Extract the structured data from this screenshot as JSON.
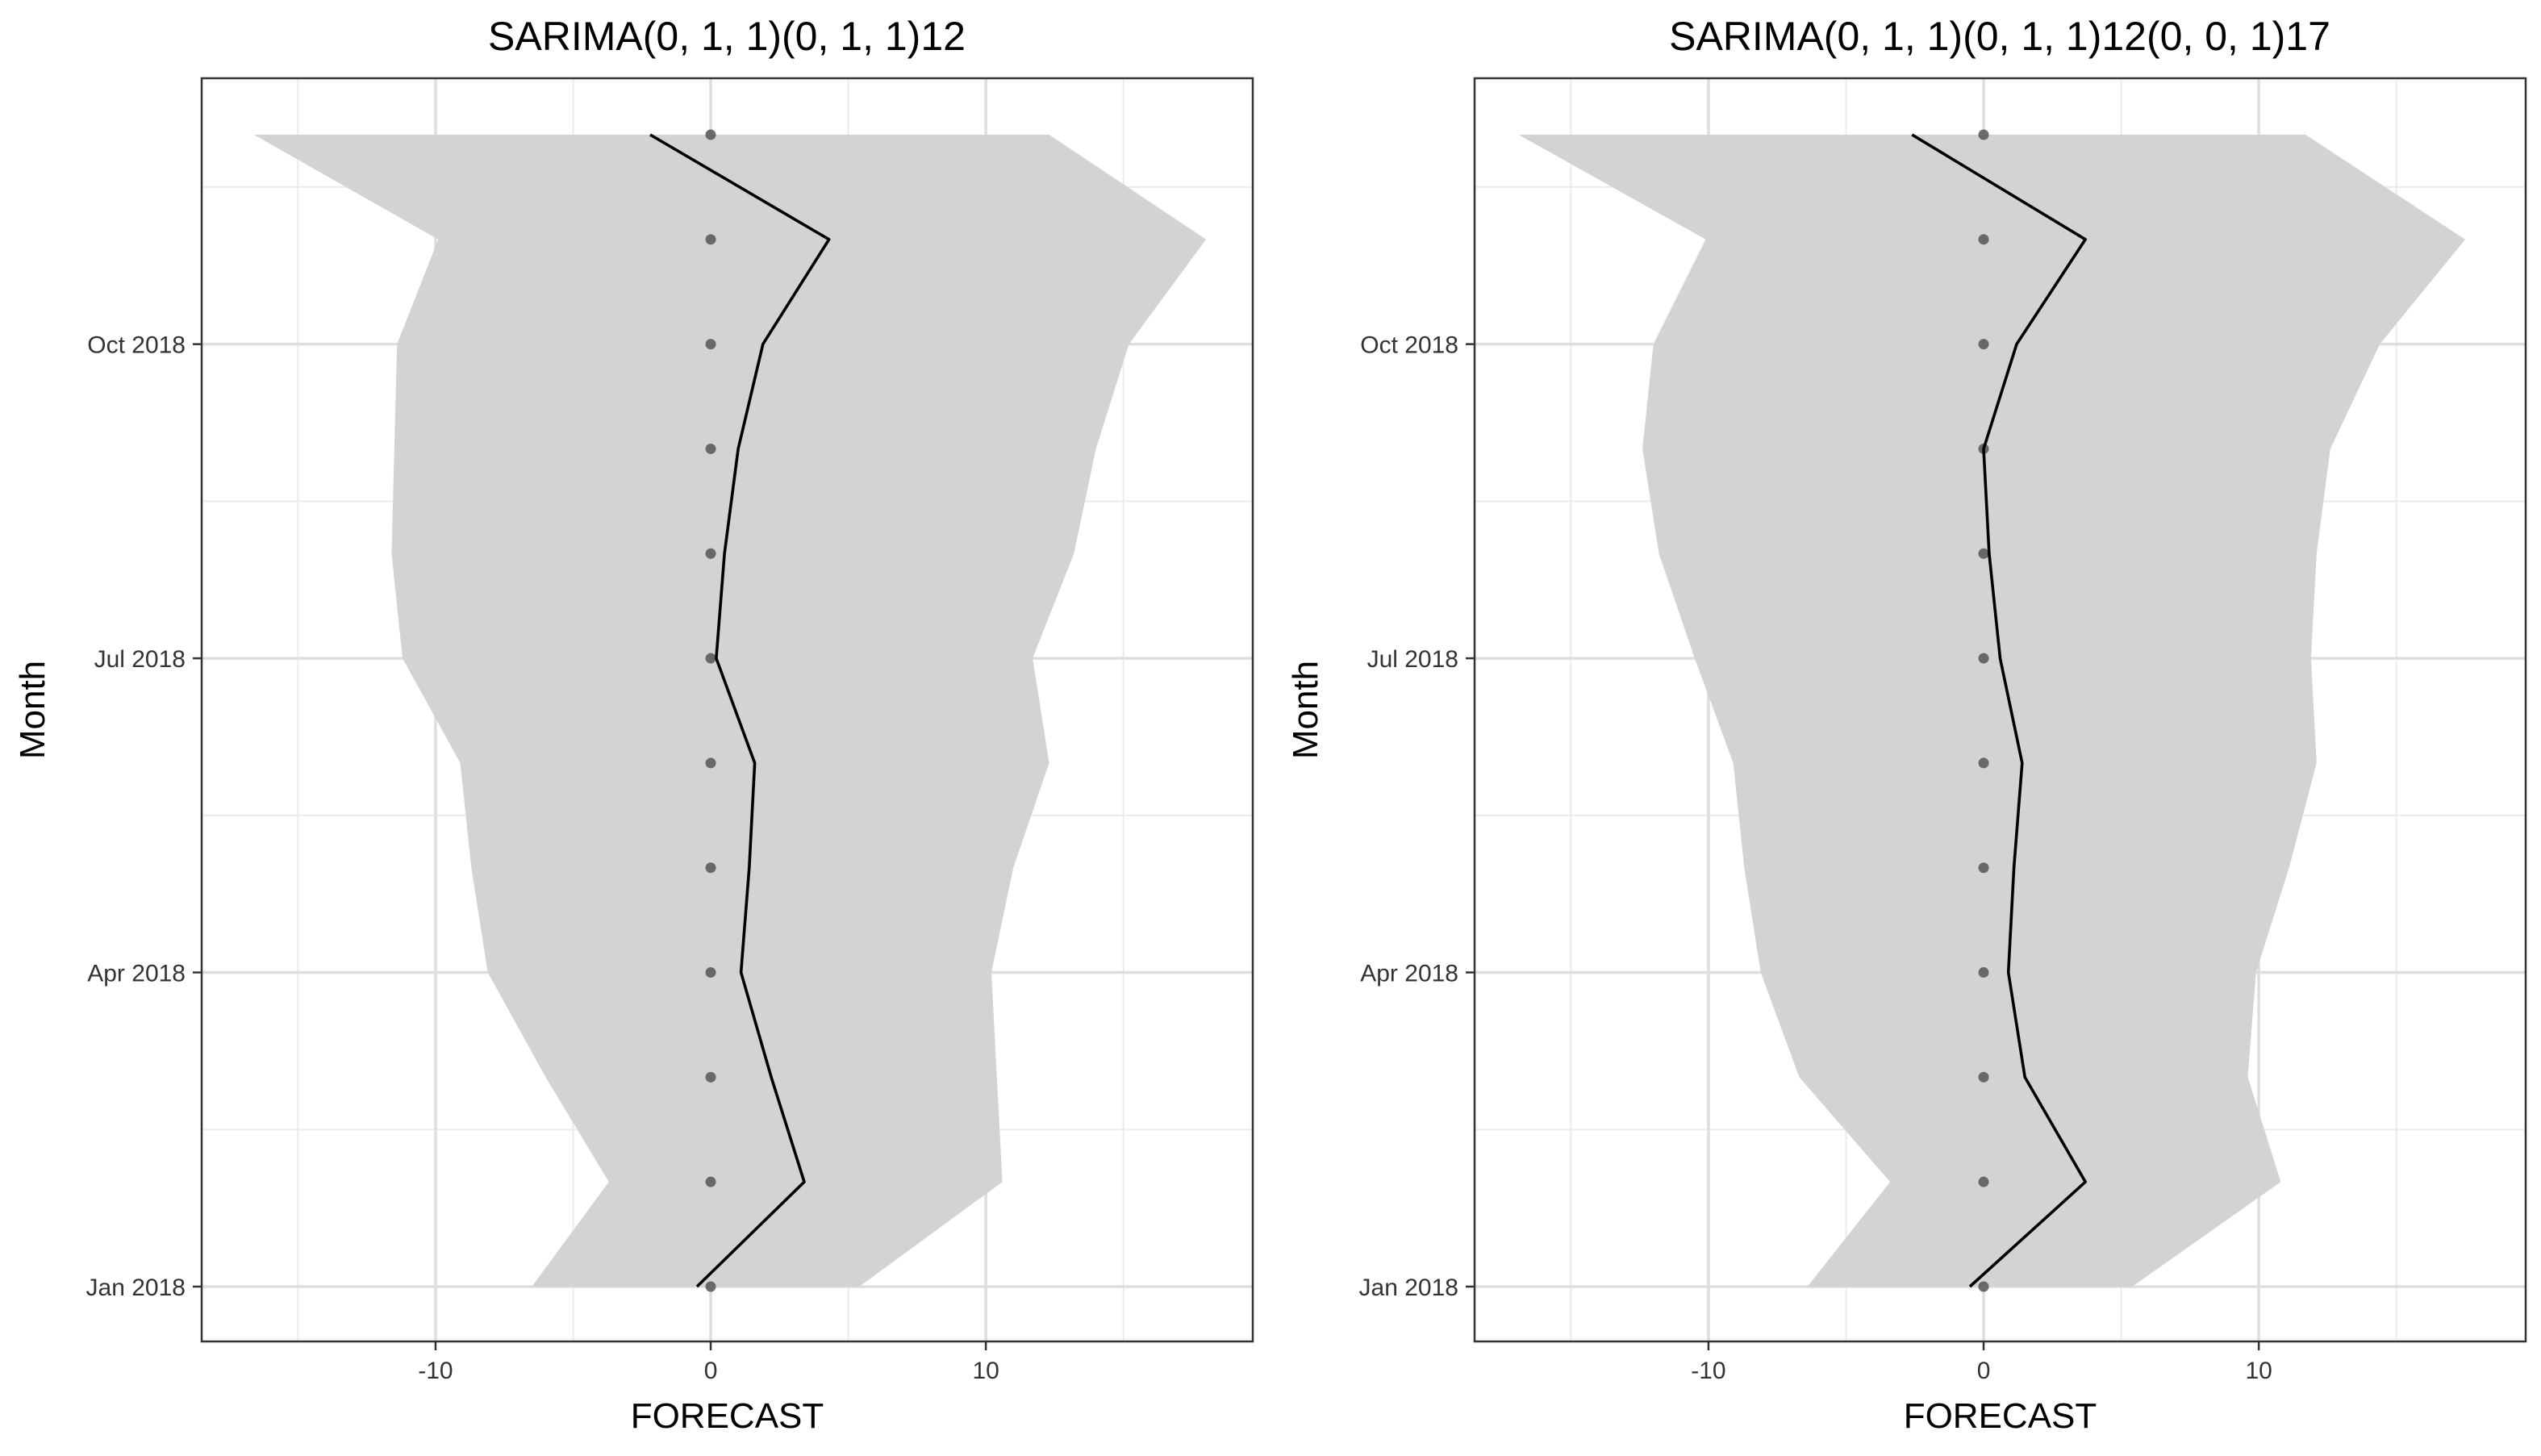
{
  "chart_data": [
    {
      "type": "line",
      "title": "SARIMA(0, 1, 1)(0, 1, 1)12",
      "xlabel": "FORECAST",
      "ylabel": "Month",
      "xlim": [
        -18.5,
        19.7
      ],
      "x_ticks": [
        -10,
        0,
        10
      ],
      "x_tick_labels": [
        "-10",
        "0",
        "10"
      ],
      "y_ticks": [
        "2018-01",
        "2018-04",
        "2018-07",
        "2018-10"
      ],
      "y_tick_labels": [
        "Jan 2018",
        "Apr 2018",
        "Jul 2018",
        "Oct 2018"
      ],
      "months": [
        "2018-01",
        "2018-02",
        "2018-03",
        "2018-04",
        "2018-05",
        "2018-06",
        "2018-07",
        "2018-08",
        "2018-09",
        "2018-10",
        "2018-11",
        "2018-12"
      ],
      "grid": true,
      "series": [
        {
          "kind": "line",
          "color": "#000000",
          "values": [
            -0.5,
            3.4,
            2.2,
            1.1,
            1.4,
            1.6,
            0.2,
            0.5,
            1.0,
            1.9,
            4.3,
            -2.2
          ]
        },
        {
          "kind": "points",
          "color": "#555555",
          "values": [
            0,
            0,
            0,
            0,
            0,
            0,
            0,
            0,
            0,
            0,
            0,
            0
          ]
        },
        {
          "kind": "band",
          "color": "#d3d3d3",
          "lower": [
            -6.5,
            -3.7,
            -6.0,
            -8.1,
            -8.7,
            -9.1,
            -11.2,
            -11.6,
            -11.5,
            -11.4,
            -9.9,
            -16.6
          ],
          "upper": [
            5.4,
            10.6,
            10.4,
            10.2,
            11.0,
            12.3,
            11.7,
            13.2,
            14.0,
            15.2,
            18.0,
            12.3
          ]
        }
      ]
    },
    {
      "type": "line",
      "title": "SARIMA(0, 1, 1)(0, 1, 1)12(0, 0, 1)17",
      "xlabel": "FORECAST",
      "ylabel": "Month",
      "xlim": [
        -18.5,
        19.7
      ],
      "x_ticks": [
        -10,
        0,
        10
      ],
      "x_tick_labels": [
        "-10",
        "0",
        "10"
      ],
      "y_ticks": [
        "2018-01",
        "2018-04",
        "2018-07",
        "2018-10"
      ],
      "y_tick_labels": [
        "Jan 2018",
        "Apr 2018",
        "Jul 2018",
        "Oct 2018"
      ],
      "months": [
        "2018-01",
        "2018-02",
        "2018-03",
        "2018-04",
        "2018-05",
        "2018-06",
        "2018-07",
        "2018-08",
        "2018-09",
        "2018-10",
        "2018-11",
        "2018-12"
      ],
      "grid": true,
      "series": [
        {
          "kind": "line",
          "color": "#000000",
          "values": [
            -0.5,
            3.7,
            1.5,
            0.9,
            1.1,
            1.4,
            0.6,
            0.2,
            0.0,
            1.2,
            3.7,
            -2.6
          ]
        },
        {
          "kind": "points",
          "color": "#555555",
          "values": [
            0,
            0,
            0,
            0,
            0,
            0,
            0,
            0,
            0,
            0,
            0,
            0
          ]
        },
        {
          "kind": "band",
          "color": "#d3d3d3",
          "lower": [
            -6.4,
            -3.4,
            -6.7,
            -8.1,
            -8.7,
            -9.1,
            -10.5,
            -11.8,
            -12.4,
            -12.0,
            -10.1,
            -16.9
          ],
          "upper": [
            5.4,
            10.8,
            9.6,
            9.9,
            11.1,
            12.1,
            11.9,
            12.1,
            12.6,
            14.4,
            17.5,
            11.7
          ]
        }
      ]
    }
  ]
}
